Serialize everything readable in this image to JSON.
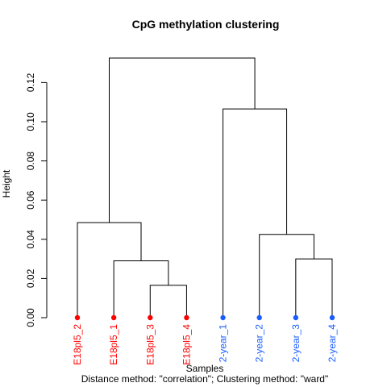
{
  "chart_data": {
    "type": "dendrogram",
    "title": "CpG methylation clustering",
    "xlabel": "Samples",
    "ylabel": "Height",
    "subtitle": "Distance method: \"correlation\"; Clustering method: \"ward\"",
    "ylim": [
      0,
      0.13
    ],
    "yticks": [
      0.0,
      0.02,
      0.04,
      0.06,
      0.08,
      0.1,
      0.12
    ],
    "ytick_labels": [
      "0.00",
      "0.02",
      "0.04",
      "0.06",
      "0.08",
      "0.10",
      "0.12"
    ],
    "colors": {
      "group1": "#ff0000",
      "group2": "#1a5cff",
      "lines": "#000000"
    },
    "leaves": [
      {
        "label": "E18pl5_2",
        "group": "group1"
      },
      {
        "label": "E18pl5_1",
        "group": "group1"
      },
      {
        "label": "E18pl5_3",
        "group": "group1"
      },
      {
        "label": "E18pl5_4",
        "group": "group1"
      },
      {
        "label": "2-year_1",
        "group": "group2"
      },
      {
        "label": "2-year_2",
        "group": "group2"
      },
      {
        "label": "2-year_3",
        "group": "group2"
      },
      {
        "label": "2-year_4",
        "group": "group2"
      }
    ],
    "merges": [
      {
        "left": "E18pl5_3",
        "right": "E18pl5_4",
        "height": 0.0165
      },
      {
        "left": "E18pl5_1",
        "right": "E18pl5_3+E18pl5_4",
        "height": 0.029
      },
      {
        "left": "E18pl5_2",
        "right": "E18pl5_1+E18pl5_3+E18pl5_4",
        "height": 0.0485
      },
      {
        "left": "2-year_3",
        "right": "2-year_4",
        "height": 0.03
      },
      {
        "left": "2-year_2",
        "right": "2-year_3+2-year_4",
        "height": 0.0425
      },
      {
        "left": "2-year_1",
        "right": "2-year_2+2-year_3+2-year_4",
        "height": 0.1065
      },
      {
        "left": "E18pl5 cluster",
        "right": "2-year cluster",
        "height": 0.1325
      }
    ]
  }
}
